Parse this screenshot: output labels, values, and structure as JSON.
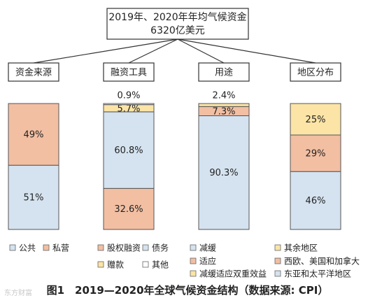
{
  "chart_data": {
    "type": "bar",
    "stacked": true,
    "title_lines": [
      "2019年、2020年年均气候资金",
      "6320亿美元"
    ],
    "categories": [
      "资金来源",
      "融资工具",
      "用途",
      "地区分布"
    ],
    "ylim": [
      0,
      100
    ],
    "grid": false,
    "columns": [
      {
        "category": "资金来源",
        "segments": [
          {
            "name": "公共",
            "value": 51,
            "label": "51%",
            "color": "#d5e3f0"
          },
          {
            "name": "私营",
            "value": 49,
            "label": "49%",
            "color": "#f2bfa3"
          }
        ]
      },
      {
        "category": "融资工具",
        "segments": [
          {
            "name": "股权融资",
            "value": 32.6,
            "label": "32.6%",
            "color": "#f2bfa3"
          },
          {
            "name": "债务",
            "value": 60.8,
            "label": "60.8%",
            "color": "#d5e3f0"
          },
          {
            "name": "赠款",
            "value": 5.7,
            "label": "5.7%",
            "color": "#fbe4a6"
          },
          {
            "name": "其他",
            "value": 0.9,
            "label": "0.9%",
            "color": "#ffffff"
          }
        ]
      },
      {
        "category": "用途",
        "segments": [
          {
            "name": "减缓",
            "value": 90.3,
            "label": "90.3%",
            "color": "#d5e3f0"
          },
          {
            "name": "适应",
            "value": 7.3,
            "label": "7.3%",
            "color": "#f2bfa3"
          },
          {
            "name": "减缓适应双重效益",
            "value": 2.4,
            "label": "2.4%",
            "color": "#fbe4a6"
          }
        ]
      },
      {
        "category": "地区分布",
        "segments": [
          {
            "name": "东亚和太平洋地区",
            "value": 46,
            "label": "46%",
            "color": "#d5e3f0"
          },
          {
            "name": "西欧、美国和加拿大",
            "value": 29,
            "label": "29%",
            "color": "#f2bfa3"
          },
          {
            "name": "其余地区",
            "value": 25,
            "label": "25%",
            "color": "#fbe4a6"
          }
        ]
      }
    ],
    "legend": [
      {
        "label": "公共",
        "color": "#d5e3f0"
      },
      {
        "label": "私营",
        "color": "#f2bfa3"
      },
      {
        "label": "股权融资",
        "color": "#f2bfa3"
      },
      {
        "label": "债务",
        "color": "#d5e3f0"
      },
      {
        "label": "赠款",
        "color": "#fbe4a6"
      },
      {
        "label": "其他",
        "color": "#ffffff"
      },
      {
        "label": "减缓",
        "color": "#d5e3f0"
      },
      {
        "label": "适应",
        "color": "#f2bfa3"
      },
      {
        "label": "减缓适应双重效益",
        "color": "#fbe4a6"
      },
      {
        "label": "其余地区",
        "color": "#fbe4a6"
      },
      {
        "label": "西欧、美国和加拿大",
        "color": "#f2bfa3"
      },
      {
        "label": "东亚和太平洋地区",
        "color": "#d5e3f0"
      }
    ]
  },
  "caption": "图1　2019—2020年全球气候资金结构（数据来源: CPI）",
  "watermark": "东方财富"
}
